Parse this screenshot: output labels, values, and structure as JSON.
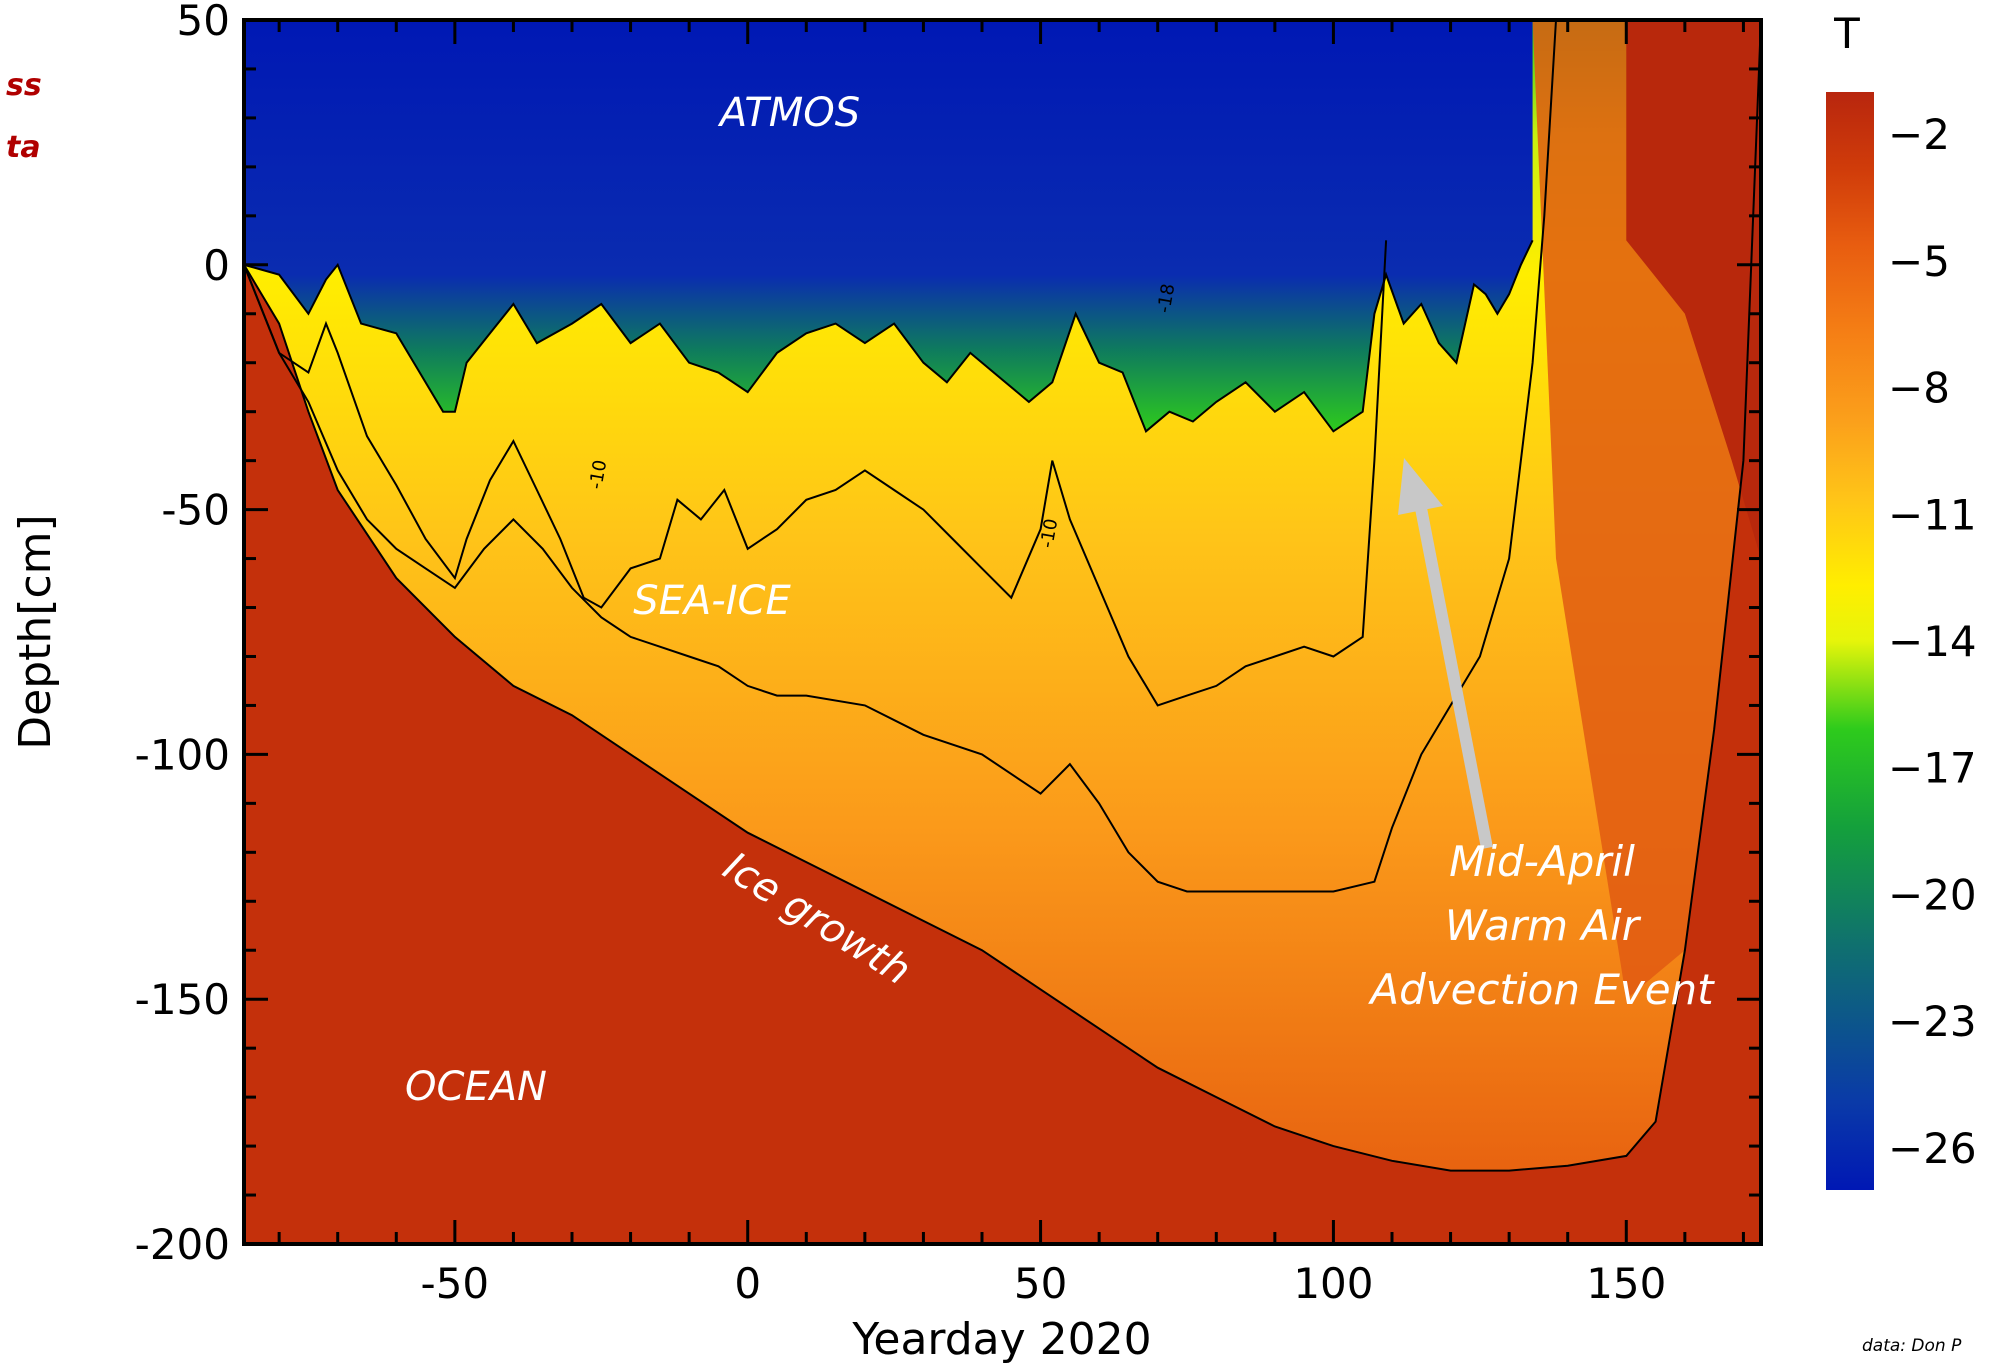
{
  "chart_data": {
    "type": "heatmap",
    "xlabel": "Yearday 2020",
    "ylabel": "Depth[cm]",
    "xlim": [
      -86,
      173
    ],
    "ylim": [
      -200,
      50
    ],
    "x_ticks": [
      -50,
      0,
      50,
      100,
      150
    ],
    "y_ticks": [
      50,
      0,
      -50,
      -100,
      -150,
      -200
    ],
    "colorbar": {
      "title": "T",
      "range": [
        -27,
        -1
      ],
      "ticks": [
        -2,
        -5,
        -8,
        -11,
        -14,
        -17,
        -20,
        -23,
        -26
      ],
      "colors": [
        "#0018b4",
        "#0a3aa8",
        "#0f6f70",
        "#14a03c",
        "#2ecb1c",
        "#e6f50a",
        "#ffee00",
        "#ffc418",
        "#fba01b",
        "#f57f15",
        "#e85d10",
        "#d03c0a",
        "#b8260e"
      ]
    },
    "region_labels": [
      "ATMOS",
      "SEA-ICE",
      "OCEAN"
    ],
    "annotations": [
      "Ice growth",
      "Mid-April",
      "Warm Air",
      "Advection Event"
    ],
    "contour_labels": [
      "-18",
      "-10"
    ],
    "series": [
      {
        "x": [
          -86,
          -80,
          -75,
          -72,
          -70,
          -66,
          -60,
          -56,
          -52,
          -50,
          -48,
          -44,
          -40,
          -36,
          -30,
          -25,
          -20,
          -15,
          -10,
          -5,
          0,
          5,
          10,
          15,
          20,
          25,
          30,
          34,
          38,
          42,
          48,
          52,
          56,
          60,
          64,
          68,
          72,
          76,
          80,
          85,
          90,
          95,
          100,
          105,
          107,
          109,
          112,
          115,
          118,
          121,
          124,
          126,
          128,
          130,
          132,
          134
        ],
        "y": [
          0,
          -2,
          -10,
          -3,
          0,
          -12,
          -14,
          -22,
          -30,
          -30,
          -20,
          -14,
          -8,
          -16,
          -12,
          -8,
          -16,
          -12,
          -20,
          -22,
          -26,
          -18,
          -14,
          -12,
          -16,
          -12,
          -20,
          -24,
          -18,
          -22,
          -28,
          -24,
          -10,
          -20,
          -22,
          -34,
          -30,
          -32,
          -28,
          -24,
          -30,
          -26,
          -34,
          -30,
          -10,
          -2,
          -12,
          -8,
          -16,
          -20,
          -4,
          -6,
          -10,
          -6,
          0,
          5
        ]
      },
      {
        "x": [
          -86,
          -80,
          -75,
          -72,
          -70,
          -65,
          -60,
          -55,
          -50,
          -48,
          -44,
          -40,
          -36,
          -32,
          -28,
          -25,
          -20,
          -15,
          -12,
          -8,
          -4,
          0,
          5,
          10,
          15,
          20,
          25,
          30,
          35,
          40,
          45,
          50,
          52,
          55,
          60,
          65,
          70,
          75,
          80,
          85,
          90,
          95,
          100,
          105,
          107,
          109
        ],
        "y": [
          0,
          -18,
          -22,
          -12,
          -18,
          -35,
          -45,
          -56,
          -64,
          -56,
          -44,
          -36,
          -46,
          -56,
          -68,
          -70,
          -62,
          -60,
          -48,
          -52,
          -46,
          -58,
          -54,
          -48,
          -46,
          -42,
          -46,
          -50,
          -56,
          -62,
          -68,
          -54,
          -40,
          -52,
          -66,
          -80,
          -90,
          -88,
          -86,
          -82,
          -80,
          -78,
          -80,
          -76,
          -40,
          5
        ]
      },
      {
        "x": [
          -86,
          -80,
          -75,
          -70,
          -65,
          -60,
          -55,
          -50,
          -45,
          -40,
          -35,
          -30,
          -25,
          -20,
          -15,
          -10,
          -5,
          0,
          5,
          10,
          20,
          30,
          40,
          50,
          55,
          60,
          65,
          70,
          75,
          80,
          90,
          100,
          107,
          110,
          115,
          120,
          125,
          130,
          134,
          136,
          138
        ],
        "y": [
          0,
          -18,
          -28,
          -42,
          -52,
          -58,
          -62,
          -66,
          -58,
          -52,
          -58,
          -66,
          -72,
          -76,
          -78,
          -80,
          -82,
          -86,
          -88,
          -88,
          -90,
          -96,
          -100,
          -108,
          -102,
          -110,
          -120,
          -126,
          -128,
          -128,
          -128,
          -128,
          -126,
          -115,
          -100,
          -90,
          -80,
          -60,
          -20,
          10,
          50
        ]
      },
      {
        "x": [
          -86,
          -80,
          -75,
          -70,
          -60,
          -50,
          -40,
          -30,
          -20,
          -10,
          0,
          10,
          20,
          30,
          40,
          50,
          60,
          70,
          80,
          90,
          100,
          110,
          120,
          130,
          140,
          150,
          155,
          160,
          165,
          170,
          173
        ],
        "y": [
          0,
          -12,
          -30,
          -46,
          -64,
          -76,
          -86,
          -92,
          -100,
          -108,
          -116,
          -122,
          -128,
          -134,
          -140,
          -148,
          -156,
          -164,
          -170,
          -176,
          -180,
          -183,
          -185,
          -185,
          -184,
          -182,
          -175,
          -140,
          -95,
          -40,
          50
        ]
      }
    ]
  }
}
